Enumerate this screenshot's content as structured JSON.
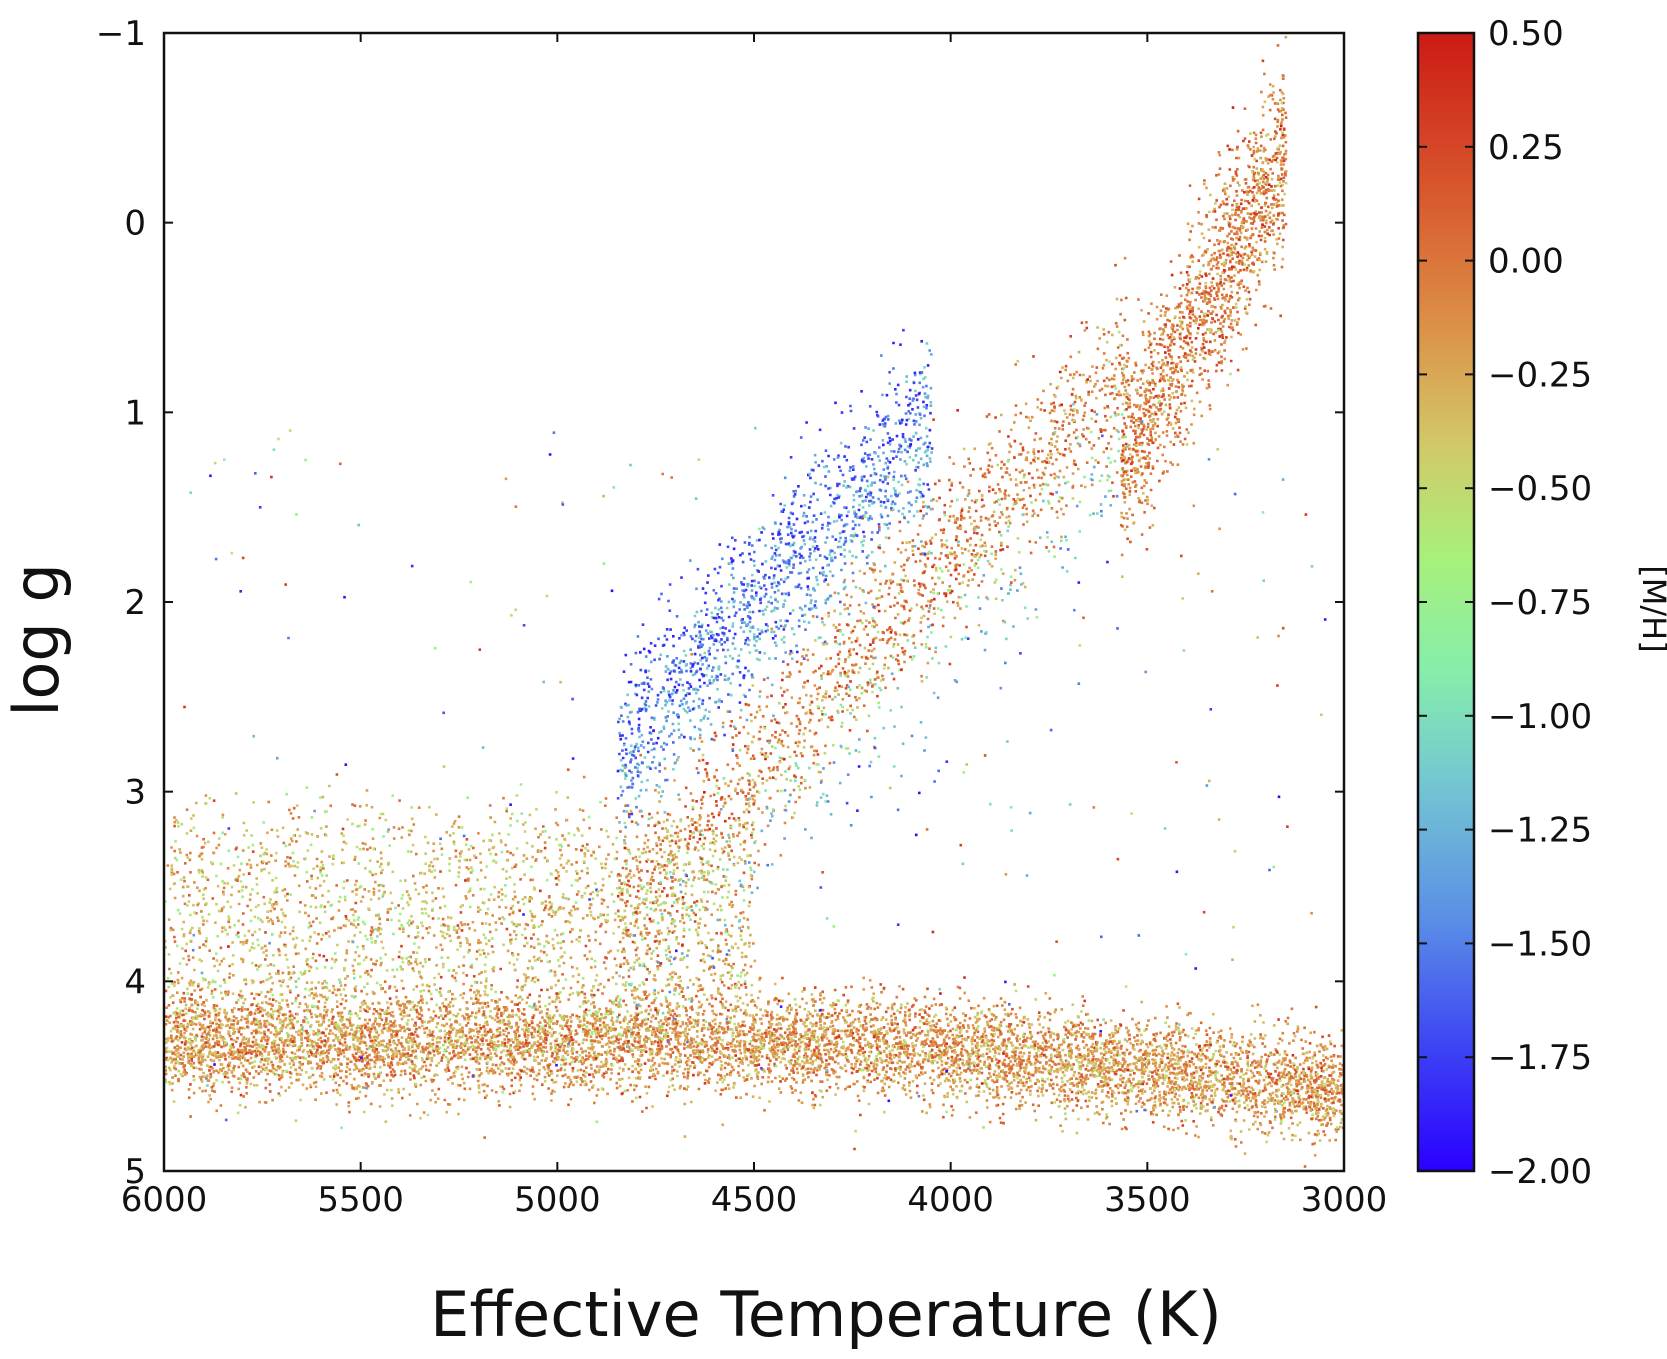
{
  "chart_data": {
    "type": "scatter",
    "title": "",
    "xlabel": "Effective Temperature (K)",
    "ylabel": "log g",
    "xlim": [
      6000,
      3000
    ],
    "ylim": [
      -1,
      5
    ],
    "x_inverted": true,
    "y_inverted": true,
    "grid": false,
    "x_ticks": [
      6000,
      5500,
      5000,
      4500,
      4000,
      3500,
      3000
    ],
    "x_tick_labels": [
      "6000",
      "5500",
      "5000",
      "4500",
      "4000",
      "3500",
      "3000"
    ],
    "y_ticks": [
      -1,
      0,
      1,
      2,
      3,
      4,
      5
    ],
    "y_tick_labels": [
      "−1",
      "0",
      "1",
      "2",
      "3",
      "4",
      "5"
    ],
    "colorbar": {
      "label": "[M/H]",
      "min": -2.0,
      "max": 0.5,
      "colormap": "rainbow",
      "ticks": [
        0.5,
        0.25,
        0.0,
        -0.25,
        -0.5,
        -0.75,
        -1.0,
        -1.25,
        -1.5,
        -1.75,
        -2.0
      ],
      "tick_labels": [
        "0.50",
        "0.25",
        "0.00",
        "−0.25",
        "−0.50",
        "−0.75",
        "−1.00",
        "−1.25",
        "−1.50",
        "−1.75",
        "−2.00"
      ],
      "colors": [
        "#2b00ff",
        "#3a5cf0",
        "#64a6de",
        "#78d8c8",
        "#96f090",
        "#c8e07a",
        "#d8a850",
        "#d86a38",
        "#d82a1a",
        "#c81414"
      ]
    },
    "groups": [
      {
        "name_hint": "giant branch, metal-rich",
        "teff": [
          4800,
          3500
        ],
        "logg": [
          3.7,
          0.6
        ],
        "mh_range": [
          0.0,
          0.35
        ]
      },
      {
        "name_hint": "giant branch, intermediate",
        "teff": [
          5000,
          3550
        ],
        "logg": [
          2.8,
          0.5
        ],
        "mh_range": [
          -0.6,
          -0.1
        ]
      },
      {
        "name_hint": "giant branch, metal-poor",
        "teff": [
          4800,
          4000
        ],
        "logg": [
          2.3,
          0.3
        ],
        "mh_range": [
          -2.0,
          -1.0
        ]
      },
      {
        "name_hint": "dwarf sequence",
        "teff": [
          6000,
          3000
        ],
        "logg": [
          4.3,
          4.5
        ],
        "mh_range": [
          -0.5,
          0.25
        ]
      },
      {
        "name_hint": "cool giant tip",
        "teff": [
          3550,
          3150
        ],
        "logg": [
          1.2,
          -0.4
        ],
        "mh_range": [
          -0.3,
          0.3
        ]
      }
    ]
  }
}
